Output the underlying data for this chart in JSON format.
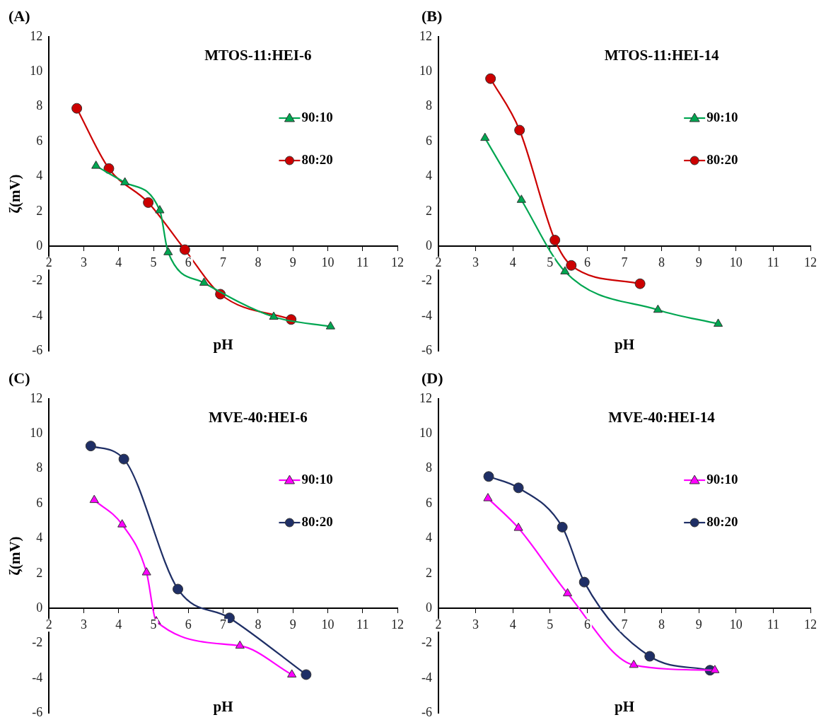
{
  "chart_data": [
    {
      "type": "line",
      "title": "MTOS-11:HEI-6",
      "xlabel": "pH",
      "ylabel": "ζ(mV)",
      "annotations": [
        "(A)"
      ],
      "xlim": [
        2,
        12
      ],
      "xticks": [
        2,
        3,
        4,
        5,
        6,
        7,
        8,
        9,
        10,
        11,
        12
      ],
      "ylim": [
        -6,
        12
      ],
      "yticks": [
        -6,
        -4,
        -2,
        0,
        2,
        4,
        6,
        8,
        10,
        12
      ],
      "grid": false,
      "legend": "right",
      "series": [
        {
          "name": "90:10",
          "color": "#00a651",
          "marker": "triangle",
          "x": [
            3.35,
            4.18,
            5.18,
            5.42,
            6.45,
            8.45,
            10.08
          ],
          "values": [
            4.6,
            3.65,
            2.05,
            -0.35,
            -2.1,
            -4.05,
            -4.6
          ]
        },
        {
          "name": "80:20",
          "color": "#cc0000",
          "marker": "circle",
          "x": [
            2.8,
            3.72,
            4.85,
            5.9,
            6.92,
            8.95
          ],
          "values": [
            7.9,
            4.45,
            2.5,
            -0.2,
            -2.75,
            -4.2
          ]
        }
      ]
    },
    {
      "type": "line",
      "title": "MTOS-11:HEI-14",
      "xlabel": "pH",
      "annotations": [
        "(B)"
      ],
      "xlim": [
        2,
        12
      ],
      "xticks": [
        2,
        3,
        4,
        5,
        6,
        7,
        8,
        9,
        10,
        11,
        12
      ],
      "ylim": [
        -6,
        12
      ],
      "yticks": [
        -6,
        -4,
        -2,
        0,
        2,
        4,
        6,
        8,
        10,
        12
      ],
      "grid": false,
      "legend": "right",
      "series": [
        {
          "name": "90:10",
          "color": "#00a651",
          "marker": "triangle",
          "x": [
            3.25,
            4.23,
            5.4,
            7.9,
            9.52
          ],
          "values": [
            6.2,
            2.65,
            -1.45,
            -3.65,
            -4.45
          ]
        },
        {
          "name": "80:20",
          "color": "#cc0000",
          "marker": "circle",
          "x": [
            3.4,
            4.18,
            5.13,
            5.57,
            7.42
          ],
          "values": [
            9.6,
            6.65,
            0.35,
            -1.1,
            -2.15
          ]
        }
      ]
    },
    {
      "type": "line",
      "title": "MVE-40:HEI-6",
      "xlabel": "pH",
      "ylabel": "ζ(mV)",
      "annotations": [
        "(C)"
      ],
      "xlim": [
        2,
        12
      ],
      "xticks": [
        2,
        3,
        4,
        5,
        6,
        7,
        8,
        9,
        10,
        11,
        12
      ],
      "ylim": [
        -6,
        12
      ],
      "yticks": [
        -6,
        -4,
        -2,
        0,
        2,
        4,
        6,
        8,
        10,
        12
      ],
      "grid": false,
      "legend": "right",
      "series": [
        {
          "name": "90:10",
          "color": "#ff00ff",
          "marker": "triangle",
          "x": [
            3.3,
            4.1,
            4.8,
            5.08,
            7.48,
            8.97
          ],
          "values": [
            6.2,
            4.8,
            2.05,
            -0.75,
            -2.15,
            -3.8
          ]
        },
        {
          "name": "80:20",
          "color": "#1f2f66",
          "marker": "circle",
          "x": [
            3.2,
            4.15,
            5.7,
            7.18,
            9.38
          ],
          "values": [
            9.3,
            8.55,
            1.1,
            -0.55,
            -3.8
          ]
        }
      ]
    },
    {
      "type": "line",
      "title": "MVE-40:HEI-14",
      "xlabel": "pH",
      "annotations": [
        "(D)"
      ],
      "xlim": [
        2,
        12
      ],
      "xticks": [
        2,
        3,
        4,
        5,
        6,
        7,
        8,
        9,
        10,
        11,
        12
      ],
      "ylim": [
        -6,
        12
      ],
      "yticks": [
        -6,
        -4,
        -2,
        0,
        2,
        4,
        6,
        8,
        10,
        12
      ],
      "grid": false,
      "legend": "right",
      "series": [
        {
          "name": "90:10",
          "color": "#ff00ff",
          "marker": "triangle",
          "x": [
            3.33,
            4.15,
            5.47,
            7.25,
            9.43
          ],
          "values": [
            6.3,
            4.6,
            0.85,
            -3.25,
            -3.55
          ]
        },
        {
          "name": "80:20",
          "color": "#1f2f66",
          "marker": "circle",
          "x": [
            3.35,
            4.15,
            5.33,
            5.92,
            7.68,
            9.3
          ],
          "values": [
            7.55,
            6.9,
            4.65,
            1.5,
            -2.75,
            -3.55
          ]
        }
      ]
    }
  ]
}
